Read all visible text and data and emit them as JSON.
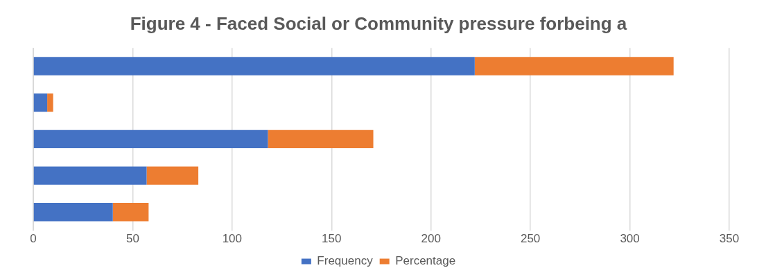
{
  "chart_data": {
    "type": "bar",
    "orientation": "horizontal",
    "stacked": true,
    "title": "Figure 4 - Faced Social or Community pressure forbeing a",
    "categories": [
      null,
      null,
      null,
      null,
      null
    ],
    "series": [
      {
        "name": "Frequency",
        "color": "#4472c4",
        "values": [
          222,
          7,
          118,
          57,
          40
        ]
      },
      {
        "name": "Percentage",
        "color": "#ed7d31",
        "values": [
          100,
          3,
          53,
          26,
          18
        ]
      }
    ],
    "xlim": [
      0,
      350
    ],
    "xticks": [
      0,
      50,
      100,
      150,
      200,
      250,
      300,
      350
    ],
    "grid": "x",
    "legend": "bottom",
    "tick_labels": "x"
  }
}
